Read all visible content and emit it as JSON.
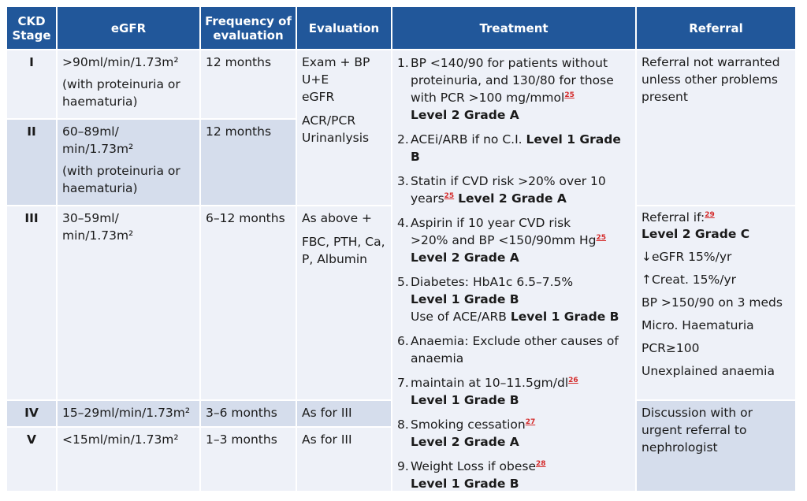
{
  "headers": {
    "stage": "CKD Stage",
    "egfr": "eGFR",
    "freq": "Frequency of evaluation",
    "eval": "Evaluation",
    "treatment": "Treatment",
    "referral": "Referral"
  },
  "rows": {
    "I": {
      "stage": "I",
      "egfr": ">90ml/min/1.73m²",
      "egfr_note": "(with proteinuria or haematuria)",
      "freq": "12 months"
    },
    "II": {
      "stage": "II",
      "egfr": "60–89ml/ min/1.73m²",
      "egfr_note": "(with proteinuria or haematuria)",
      "freq": "12 months"
    },
    "III": {
      "stage": "III",
      "egfr": "30–59ml/ min/1.73m²",
      "freq": "6–12 months"
    },
    "IV": {
      "stage": "IV",
      "egfr": "15–29ml/min/1.73m²",
      "freq": "3–6 months",
      "eval": "As for III"
    },
    "V": {
      "stage": "V",
      "egfr": "<15ml/min/1.73m²",
      "freq": "1–3 months",
      "eval": "As for III"
    }
  },
  "evaluation": {
    "stage_1_2": [
      "Exam + BP",
      "U+E",
      "eGFR"
    ],
    "stage_1_2_extra": [
      "ACR/PCR",
      "Urinanlysis"
    ],
    "stage_3": [
      "As above +",
      "FBC, PTH, Ca, P, Albumin"
    ]
  },
  "treatment": {
    "t1": {
      "num": "1.",
      "text": "BP <140/90 for patients without proteinuria, and 130/80 for those with PCR >100 mg/mmol",
      "ref": "25",
      "level": "Level 2 Grade A"
    },
    "t2": {
      "num": "2.",
      "text": "ACEi/ARB if no C.I.",
      "level": "Level 1 Grade B"
    },
    "t3": {
      "num": "3.",
      "text": "Statin if CVD risk >20% over 10 years",
      "ref": "25",
      "level": "Level 2 Grade A"
    },
    "t4": {
      "num": "4.",
      "text_a": "Aspirin if 10 year CVD risk",
      "text_b": ">20% and BP <150/90mm Hg",
      "ref": "25",
      "level": "Level 2 Grade A"
    },
    "t5": {
      "num": "5.",
      "text": "Diabetes: HbA1c 6.5–7.5%",
      "level": "Level 1 Grade B",
      "text2": "Use of ACE/ARB",
      "level2": "Level 1 Grade B"
    },
    "t6": {
      "num": "6.",
      "text": "Anaemia: Exclude other causes of anaemia"
    },
    "t7": {
      "num": "7.",
      "text": "maintain at 10–11.5gm/dl",
      "ref": "26",
      "level": "Level 1 Grade B"
    },
    "t8": {
      "num": "8.",
      "text": "Smoking cessation",
      "ref": "27",
      "level": "Level 2 Grade A"
    },
    "t9": {
      "num": "9.",
      "text": "Weight Loss if obese",
      "ref": "28",
      "level": "Level 1 Grade B"
    }
  },
  "referral": {
    "top": "Referral not warranted unless other problems present",
    "mid_title": "Referral if:",
    "mid_ref": "29",
    "mid_level": "Level 2 Grade C",
    "criteria": [
      "↓eGFR 15%/yr",
      "↑Creat. 15%/yr",
      "BP >150/90 on 3 meds",
      "Micro. Haematuria",
      "PCR≥100",
      "Unexplained anaemia"
    ],
    "bottom": "Discussion with or urgent referral to nephrologist"
  },
  "colors": {
    "header_bg": "#21579a",
    "row_light": "#eef1f8",
    "row_shade": "#d5ddec",
    "ref_red": "#d42a2a"
  }
}
